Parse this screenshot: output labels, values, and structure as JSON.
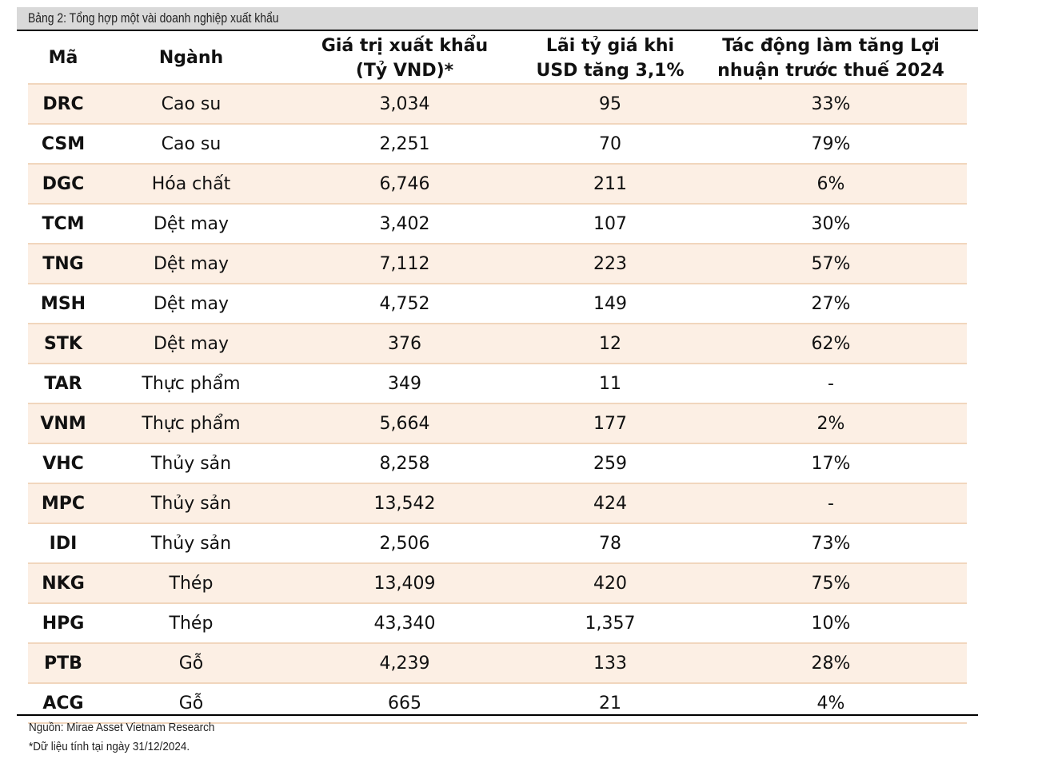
{
  "caption": "Bảng 2: Tổng hợp một vài doanh nghiệp xuất khẩu",
  "headers": {
    "code": "Mã",
    "sector": "Ngành",
    "export_value_line1": "Giá trị xuất khẩu",
    "export_value_line2": "(Tỷ VND)*",
    "fx_gain_line1": "Lãi tỷ giá khi",
    "fx_gain_line2": "USD tăng 3,1%",
    "impact_line1": "Tác động làm tăng Lợi",
    "impact_line2": "nhuận trước thuế 2024"
  },
  "rows": [
    {
      "code": "DRC",
      "sector": "Cao su",
      "export_value": "3,034",
      "fx_gain": "95",
      "impact": "33%"
    },
    {
      "code": "CSM",
      "sector": "Cao su",
      "export_value": "2,251",
      "fx_gain": "70",
      "impact": "79%"
    },
    {
      "code": "DGC",
      "sector": "Hóa chất",
      "export_value": "6,746",
      "fx_gain": "211",
      "impact": "6%"
    },
    {
      "code": "TCM",
      "sector": "Dệt may",
      "export_value": "3,402",
      "fx_gain": "107",
      "impact": "30%"
    },
    {
      "code": "TNG",
      "sector": "Dệt may",
      "export_value": "7,112",
      "fx_gain": "223",
      "impact": "57%"
    },
    {
      "code": "MSH",
      "sector": "Dệt may",
      "export_value": "4,752",
      "fx_gain": "149",
      "impact": "27%"
    },
    {
      "code": "STK",
      "sector": "Dệt may",
      "export_value": "376",
      "fx_gain": "12",
      "impact": "62%"
    },
    {
      "code": "TAR",
      "sector": "Thực phẩm",
      "export_value": "349",
      "fx_gain": "11",
      "impact": "-"
    },
    {
      "code": "VNM",
      "sector": "Thực phẩm",
      "export_value": "5,664",
      "fx_gain": "177",
      "impact": "2%"
    },
    {
      "code": "VHC",
      "sector": "Thủy sản",
      "export_value": "8,258",
      "fx_gain": "259",
      "impact": "17%"
    },
    {
      "code": "MPC",
      "sector": "Thủy sản",
      "export_value": "13,542",
      "fx_gain": "424",
      "impact": "-"
    },
    {
      "code": "IDI",
      "sector": "Thủy sản",
      "export_value": "2,506",
      "fx_gain": "78",
      "impact": "73%"
    },
    {
      "code": "NKG",
      "sector": "Thép",
      "export_value": "13,409",
      "fx_gain": "420",
      "impact": "75%"
    },
    {
      "code": "HPG",
      "sector": "Thép",
      "export_value": "43,340",
      "fx_gain": "1,357",
      "impact": "10%"
    },
    {
      "code": "PTB",
      "sector": "Gỗ",
      "export_value": "4,239",
      "fx_gain": "133",
      "impact": "28%"
    },
    {
      "code": "ACG",
      "sector": "Gỗ",
      "export_value": "665",
      "fx_gain": "21",
      "impact": "4%"
    }
  ],
  "source_note": "Nguồn: Mirae Asset Vietnam Research",
  "footnote": "*Dữ liệu tính tại ngày 31/12/2024.",
  "colors": {
    "caption_background": "#d9d9d9",
    "row_shade": "#fcefe4",
    "row_divider": "#f1d6bd"
  }
}
